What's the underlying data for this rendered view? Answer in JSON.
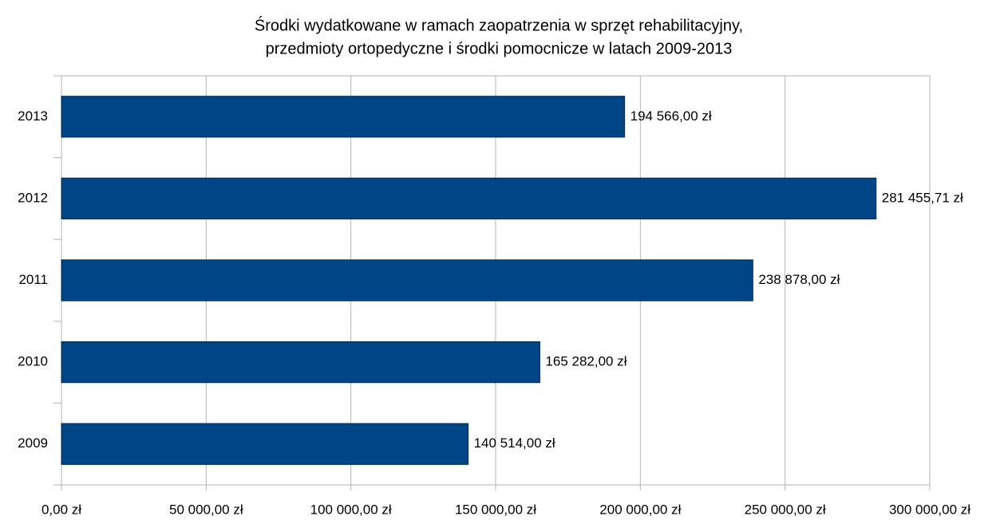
{
  "chart_data": {
    "type": "barh",
    "title": [
      "Środki wydatkowane w ramach zaopatrzenia w sprzęt rehabilitacyjny,",
      "przedmioty ortopedyczne i środki pomocnicze w latach 2009-2013"
    ],
    "categories": [
      "2009",
      "2010",
      "2011",
      "2012",
      "2013"
    ],
    "values": [
      140514,
      165282,
      238878,
      281455.71,
      194566
    ],
    "value_labels": [
      "140 514,00 zł",
      "165 282,00 zł",
      "238 878,00 zł",
      "281 455,71 zł",
      "194 566,00 zł"
    ],
    "color": "#004586",
    "xlim": [
      0,
      300000
    ],
    "xticks": [
      {
        "value": 0,
        "label": "0,00 zł"
      },
      {
        "value": 50000,
        "label": "50 000,00 zł"
      },
      {
        "value": 100000,
        "label": "100 000,00 zł"
      },
      {
        "value": 150000,
        "label": "150 000,00 zł"
      },
      {
        "value": 200000,
        "label": "200 000,00 zł"
      },
      {
        "value": 250000,
        "label": "250 000,00 zł"
      },
      {
        "value": 300000,
        "label": "300 000,00 zł"
      }
    ],
    "grid": true
  }
}
